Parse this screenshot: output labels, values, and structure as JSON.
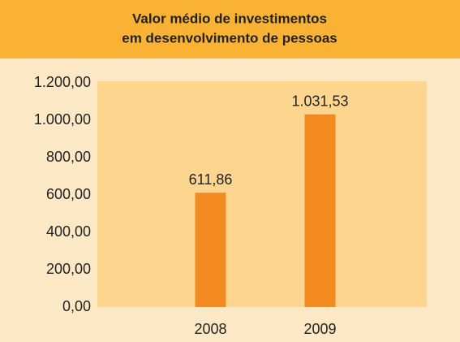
{
  "chart_data": {
    "type": "bar",
    "title": [
      "Valor médio de investimentos",
      "em desenvolvimento de pessoas"
    ],
    "categories": [
      "2008",
      "2009"
    ],
    "values": [
      611.86,
      1031.53
    ],
    "value_labels": [
      "611,86",
      "1.031,53"
    ],
    "color": "#f28a1f",
    "ylim": [
      0,
      1200
    ],
    "yticks": [
      {
        "value": 0,
        "label": "0,00"
      },
      {
        "value": 200,
        "label": "200,00"
      },
      {
        "value": 400,
        "label": "400,00"
      },
      {
        "value": 600,
        "label": "600,00"
      },
      {
        "value": 800,
        "label": "800,00"
      },
      {
        "value": 1000,
        "label": "1.000,00"
      },
      {
        "value": 1200,
        "label": "1.200,00"
      }
    ],
    "grid": false
  }
}
